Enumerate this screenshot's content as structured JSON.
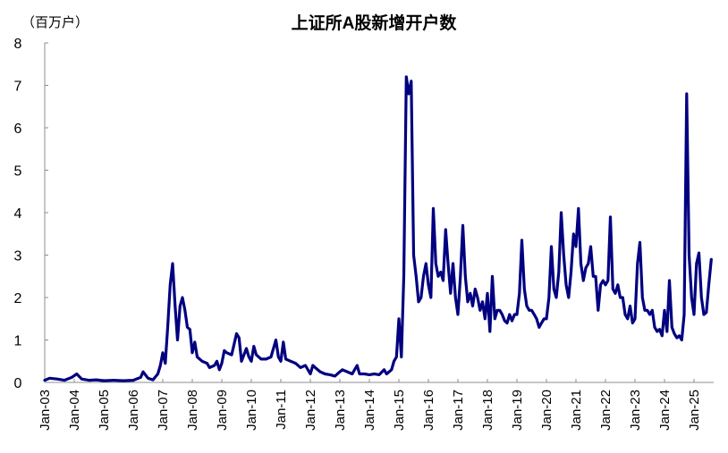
{
  "chart_data": {
    "type": "line",
    "title": "上证所A股新增开户数",
    "ylabel": "（百万户）",
    "xlabel": "",
    "ylim": [
      0,
      8
    ],
    "yticks": [
      0,
      1,
      2,
      3,
      4,
      5,
      6,
      7,
      8
    ],
    "grid": false,
    "legend": null,
    "color": "#000080",
    "xtick_labels": [
      "Jan-03",
      "Jan-04",
      "Jan-05",
      "Jan-06",
      "Jan-07",
      "Jan-08",
      "Jan-09",
      "Jan-10",
      "Jan-11",
      "Jan-12",
      "Jan-13",
      "Jan-14",
      "Jan-15",
      "Jan-16",
      "Jan-17",
      "Jan-18",
      "Jan-19",
      "Jan-20",
      "Jan-21",
      "Jan-22",
      "Jan-23",
      "Jan-24",
      "Jan-25"
    ],
    "series": [
      {
        "name": "上证所A股新增开户数",
        "points": [
          [
            "2003-01",
            0.05
          ],
          [
            "2003-03",
            0.1
          ],
          [
            "2003-06",
            0.08
          ],
          [
            "2003-09",
            0.05
          ],
          [
            "2003-12",
            0.12
          ],
          [
            "2004-02",
            0.2
          ],
          [
            "2004-04",
            0.08
          ],
          [
            "2004-07",
            0.05
          ],
          [
            "2004-10",
            0.06
          ],
          [
            "2005-01",
            0.04
          ],
          [
            "2005-05",
            0.05
          ],
          [
            "2005-09",
            0.04
          ],
          [
            "2006-01",
            0.05
          ],
          [
            "2006-04",
            0.12
          ],
          [
            "2006-05",
            0.25
          ],
          [
            "2006-07",
            0.1
          ],
          [
            "2006-09",
            0.06
          ],
          [
            "2006-11",
            0.2
          ],
          [
            "2006-12",
            0.4
          ],
          [
            "2007-01",
            0.7
          ],
          [
            "2007-02",
            0.45
          ],
          [
            "2007-03",
            1.3
          ],
          [
            "2007-04",
            2.3
          ],
          [
            "2007-05",
            2.8
          ],
          [
            "2007-06",
            1.8
          ],
          [
            "2007-07",
            1.0
          ],
          [
            "2007-08",
            1.8
          ],
          [
            "2007-09",
            2.0
          ],
          [
            "2007-10",
            1.7
          ],
          [
            "2007-11",
            1.3
          ],
          [
            "2007-12",
            1.25
          ],
          [
            "2008-01",
            0.7
          ],
          [
            "2008-02",
            0.95
          ],
          [
            "2008-03",
            0.6
          ],
          [
            "2008-05",
            0.5
          ],
          [
            "2008-07",
            0.45
          ],
          [
            "2008-08",
            0.35
          ],
          [
            "2008-10",
            0.4
          ],
          [
            "2008-11",
            0.5
          ],
          [
            "2008-12",
            0.3
          ],
          [
            "2009-01",
            0.45
          ],
          [
            "2009-02",
            0.75
          ],
          [
            "2009-03",
            0.7
          ],
          [
            "2009-05",
            0.65
          ],
          [
            "2009-07",
            1.15
          ],
          [
            "2009-08",
            1.05
          ],
          [
            "2009-09",
            0.5
          ],
          [
            "2009-10",
            0.65
          ],
          [
            "2009-11",
            0.8
          ],
          [
            "2009-12",
            0.6
          ],
          [
            "2010-01",
            0.5
          ],
          [
            "2010-02",
            0.85
          ],
          [
            "2010-03",
            0.65
          ],
          [
            "2010-05",
            0.55
          ],
          [
            "2010-07",
            0.55
          ],
          [
            "2010-09",
            0.6
          ],
          [
            "2010-11",
            1.0
          ],
          [
            "2010-12",
            0.6
          ],
          [
            "2011-01",
            0.5
          ],
          [
            "2011-02",
            0.95
          ],
          [
            "2011-03",
            0.55
          ],
          [
            "2011-05",
            0.5
          ],
          [
            "2011-07",
            0.45
          ],
          [
            "2011-09",
            0.35
          ],
          [
            "2011-11",
            0.4
          ],
          [
            "2012-01",
            0.2
          ],
          [
            "2012-02",
            0.4
          ],
          [
            "2012-03",
            0.35
          ],
          [
            "2012-05",
            0.25
          ],
          [
            "2012-07",
            0.2
          ],
          [
            "2012-09",
            0.18
          ],
          [
            "2012-11",
            0.15
          ],
          [
            "2013-01",
            0.25
          ],
          [
            "2013-02",
            0.3
          ],
          [
            "2013-04",
            0.25
          ],
          [
            "2013-06",
            0.2
          ],
          [
            "2013-08",
            0.4
          ],
          [
            "2013-09",
            0.2
          ],
          [
            "2013-11",
            0.2
          ],
          [
            "2014-01",
            0.18
          ],
          [
            "2014-03",
            0.2
          ],
          [
            "2014-05",
            0.18
          ],
          [
            "2014-07",
            0.3
          ],
          [
            "2014-08",
            0.2
          ],
          [
            "2014-10",
            0.3
          ],
          [
            "2014-11",
            0.5
          ],
          [
            "2014-12",
            0.6
          ],
          [
            "2015-01",
            1.5
          ],
          [
            "2015-02",
            0.6
          ],
          [
            "2015-03",
            2.5
          ],
          [
            "2015-04",
            7.2
          ],
          [
            "2015-05",
            6.8
          ],
          [
            "2015-06",
            7.1
          ],
          [
            "2015-07",
            3.0
          ],
          [
            "2015-08",
            2.5
          ],
          [
            "2015-09",
            1.9
          ],
          [
            "2015-10",
            2.0
          ],
          [
            "2015-11",
            2.5
          ],
          [
            "2015-12",
            2.8
          ],
          [
            "2016-01",
            2.3
          ],
          [
            "2016-02",
            2.0
          ],
          [
            "2016-03",
            4.1
          ],
          [
            "2016-04",
            2.8
          ],
          [
            "2016-05",
            2.5
          ],
          [
            "2016-06",
            2.6
          ],
          [
            "2016-07",
            2.4
          ],
          [
            "2016-08",
            3.6
          ],
          [
            "2016-09",
            2.8
          ],
          [
            "2016-10",
            2.1
          ],
          [
            "2016-11",
            2.8
          ],
          [
            "2016-12",
            2.0
          ],
          [
            "2017-01",
            1.6
          ],
          [
            "2017-02",
            2.5
          ],
          [
            "2017-03",
            3.7
          ],
          [
            "2017-04",
            2.5
          ],
          [
            "2017-05",
            1.9
          ],
          [
            "2017-06",
            2.1
          ],
          [
            "2017-07",
            1.8
          ],
          [
            "2017-08",
            2.2
          ],
          [
            "2017-09",
            2.0
          ],
          [
            "2017-10",
            1.7
          ],
          [
            "2017-11",
            1.9
          ],
          [
            "2017-12",
            1.5
          ],
          [
            "2018-01",
            2.1
          ],
          [
            "2018-02",
            1.2
          ],
          [
            "2018-03",
            2.5
          ],
          [
            "2018-04",
            1.5
          ],
          [
            "2018-05",
            1.7
          ],
          [
            "2018-06",
            1.7
          ],
          [
            "2018-07",
            1.6
          ],
          [
            "2018-08",
            1.45
          ],
          [
            "2018-09",
            1.4
          ],
          [
            "2018-10",
            1.6
          ],
          [
            "2018-11",
            1.45
          ],
          [
            "2018-12",
            1.6
          ],
          [
            "2019-01",
            1.6
          ],
          [
            "2019-02",
            2.1
          ],
          [
            "2019-03",
            3.35
          ],
          [
            "2019-04",
            2.2
          ],
          [
            "2019-05",
            1.8
          ],
          [
            "2019-06",
            1.7
          ],
          [
            "2019-07",
            1.7
          ],
          [
            "2019-08",
            1.6
          ],
          [
            "2019-09",
            1.5
          ],
          [
            "2019-10",
            1.3
          ],
          [
            "2019-11",
            1.4
          ],
          [
            "2019-12",
            1.5
          ],
          [
            "2020-01",
            1.5
          ],
          [
            "2020-02",
            2.0
          ],
          [
            "2020-03",
            3.2
          ],
          [
            "2020-04",
            2.2
          ],
          [
            "2020-05",
            2.0
          ],
          [
            "2020-06",
            2.6
          ],
          [
            "2020-07",
            4.0
          ],
          [
            "2020-08",
            3.0
          ],
          [
            "2020-09",
            2.3
          ],
          [
            "2020-10",
            2.0
          ],
          [
            "2020-11",
            2.6
          ],
          [
            "2020-12",
            3.5
          ],
          [
            "2021-01",
            3.2
          ],
          [
            "2021-02",
            4.1
          ],
          [
            "2021-03",
            2.8
          ],
          [
            "2021-04",
            2.4
          ],
          [
            "2021-05",
            2.7
          ],
          [
            "2021-06",
            2.8
          ],
          [
            "2021-07",
            3.2
          ],
          [
            "2021-08",
            2.5
          ],
          [
            "2021-09",
            2.5
          ],
          [
            "2021-10",
            1.7
          ],
          [
            "2021-11",
            2.3
          ],
          [
            "2021-12",
            2.4
          ],
          [
            "2022-01",
            2.3
          ],
          [
            "2022-02",
            2.4
          ],
          [
            "2022-03",
            3.9
          ],
          [
            "2022-04",
            2.2
          ],
          [
            "2022-05",
            2.1
          ],
          [
            "2022-06",
            2.3
          ],
          [
            "2022-07",
            2.0
          ],
          [
            "2022-08",
            2.0
          ],
          [
            "2022-09",
            1.6
          ],
          [
            "2022-10",
            1.5
          ],
          [
            "2022-11",
            1.8
          ],
          [
            "2022-12",
            1.4
          ],
          [
            "2023-01",
            1.5
          ],
          [
            "2023-02",
            2.8
          ],
          [
            "2023-03",
            3.3
          ],
          [
            "2023-04",
            2.0
          ],
          [
            "2023-05",
            1.7
          ],
          [
            "2023-06",
            1.7
          ],
          [
            "2023-07",
            1.6
          ],
          [
            "2023-08",
            1.7
          ],
          [
            "2023-09",
            1.3
          ],
          [
            "2023-10",
            1.2
          ],
          [
            "2023-11",
            1.25
          ],
          [
            "2023-12",
            1.1
          ],
          [
            "2024-01",
            1.7
          ],
          [
            "2024-02",
            1.2
          ],
          [
            "2024-03",
            2.4
          ],
          [
            "2024-04",
            1.3
          ],
          [
            "2024-05",
            1.15
          ],
          [
            "2024-06",
            1.05
          ],
          [
            "2024-07",
            1.1
          ],
          [
            "2024-08",
            1.0
          ],
          [
            "2024-09",
            1.6
          ],
          [
            "2024-10",
            6.8
          ],
          [
            "2024-11",
            3.0
          ],
          [
            "2024-12",
            2.0
          ],
          [
            "2025-01",
            1.6
          ],
          [
            "2025-02",
            2.8
          ],
          [
            "2025-03",
            3.05
          ],
          [
            "2025-04",
            2.0
          ],
          [
            "2025-05",
            1.6
          ],
          [
            "2025-06",
            1.65
          ],
          [
            "2025-07",
            2.3
          ],
          [
            "2025-08",
            2.9
          ]
        ]
      }
    ]
  }
}
